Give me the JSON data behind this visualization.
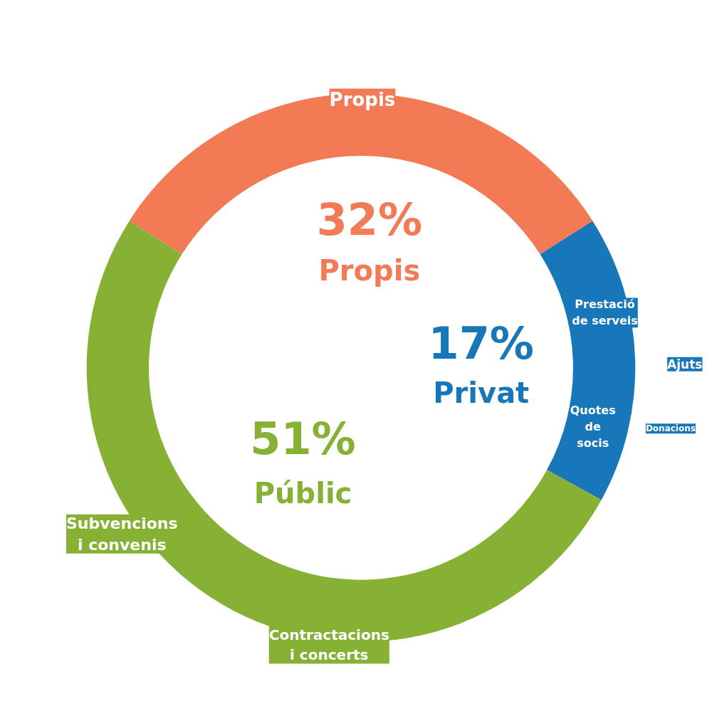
{
  "chart_data": {
    "type": "donut",
    "categories": [
      "Propis",
      "Privat",
      "Públic"
    ],
    "values": [
      32,
      17,
      51
    ],
    "colors": [
      "#f27b55",
      "#1877b9",
      "#86b135"
    ],
    "value_labels": [
      "32%",
      "17%",
      "51%"
    ],
    "annotations": [
      "Propis",
      "Prestació de serveis",
      "Ajuts",
      "Quotes de socis",
      "Donacions",
      "Subvencions i convenis",
      "Contractacions i concerts"
    ]
  }
}
